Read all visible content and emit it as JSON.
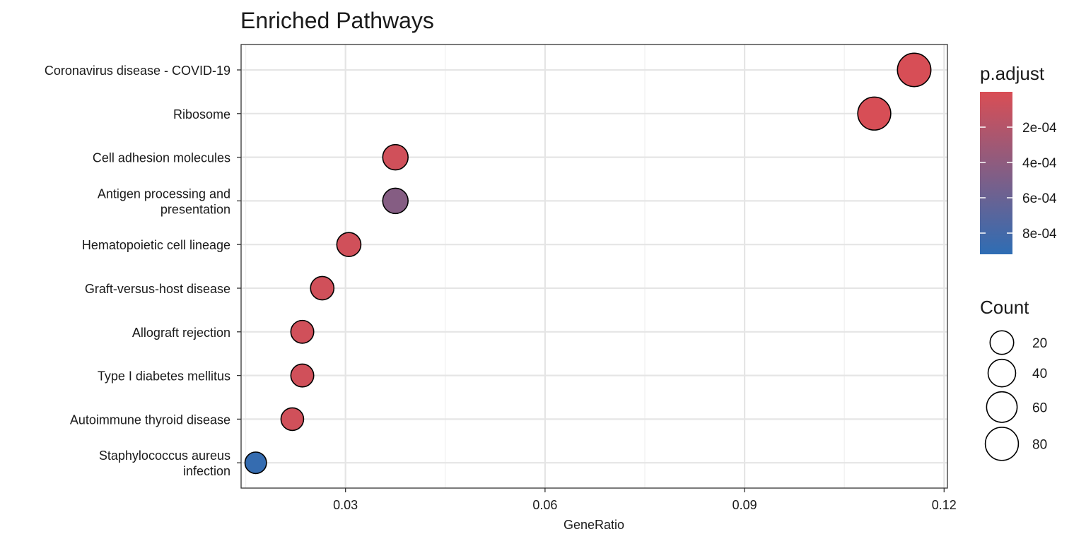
{
  "chart_data": {
    "type": "scatter",
    "title": "Enriched Pathways",
    "xlabel": "GeneRatio",
    "ylabel": "",
    "xlim": [
      0.0143,
      0.1205
    ],
    "xticks": [
      0.03,
      0.06,
      0.09,
      0.12
    ],
    "xtick_labels": [
      "0.03",
      "0.06",
      "0.09",
      "0.12"
    ],
    "grid": true,
    "legend_position": "right",
    "categories": [
      [
        "Coronavirus disease - COVID-19"
      ],
      [
        "Ribosome"
      ],
      [
        "Cell adhesion molecules"
      ],
      [
        "Antigen processing and",
        "presentation"
      ],
      [
        "Hematopoietic cell lineage"
      ],
      [
        "Graft-versus-host disease"
      ],
      [
        "Allograft rejection"
      ],
      [
        "Type I diabetes mellitus"
      ],
      [
        "Autoimmune thyroid disease"
      ],
      [
        "Staphylococcus aureus",
        "infection"
      ]
    ],
    "points": [
      {
        "gene_ratio": 0.1155,
        "count": 83,
        "p_adjust": 1e-05
      },
      {
        "gene_ratio": 0.1095,
        "count": 79,
        "p_adjust": 1e-05
      },
      {
        "gene_ratio": 0.0375,
        "count": 28,
        "p_adjust": 5e-05
      },
      {
        "gene_ratio": 0.0375,
        "count": 28,
        "p_adjust": 0.00045
      },
      {
        "gene_ratio": 0.0305,
        "count": 22,
        "p_adjust": 5e-05
      },
      {
        "gene_ratio": 0.0265,
        "count": 19,
        "p_adjust": 5e-05
      },
      {
        "gene_ratio": 0.0235,
        "count": 17,
        "p_adjust": 5e-05
      },
      {
        "gene_ratio": 0.0235,
        "count": 17,
        "p_adjust": 5e-05
      },
      {
        "gene_ratio": 0.022,
        "count": 16,
        "p_adjust": 5e-05
      },
      {
        "gene_ratio": 0.0165,
        "count": 12,
        "p_adjust": 0.00088
      }
    ],
    "color_legend": {
      "title": "p.adjust",
      "range": [
        0.0,
        0.00092
      ],
      "low_color": "#D94E55",
      "high_color": "#2E6DB4",
      "ticks": [
        0.0002,
        0.0004,
        0.0006,
        0.0008
      ],
      "tick_labels": [
        "2e-04",
        "4e-04",
        "6e-04",
        "8e-04"
      ]
    },
    "size_legend": {
      "title": "Count",
      "values": [
        20,
        40,
        60,
        80
      ],
      "labels": [
        "20",
        "40",
        "60",
        "80"
      ]
    }
  }
}
